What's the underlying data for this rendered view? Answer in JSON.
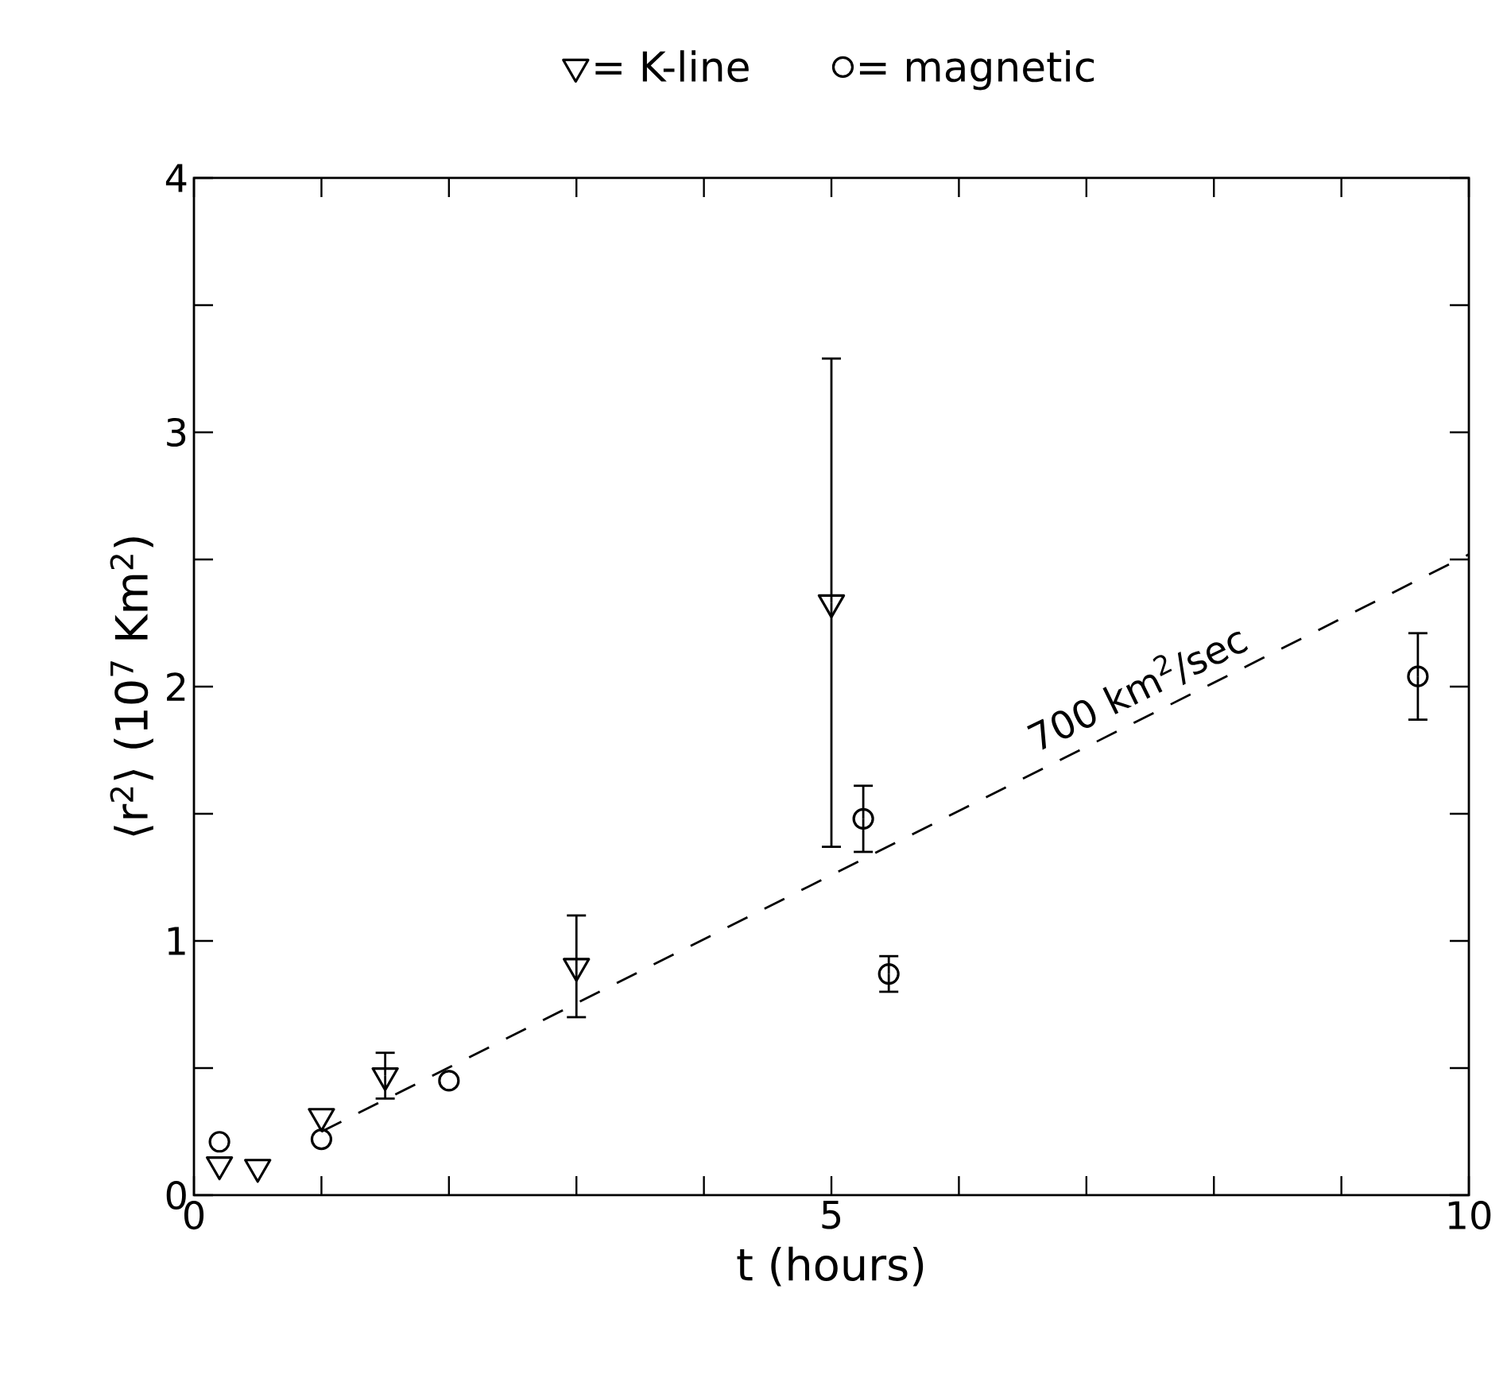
{
  "chart_data": {
    "type": "scatter",
    "xlabel": "t (hours)",
    "ylabel": "⟨r$^{2}$⟩ (10$^{7}$ Km$^{2}$)",
    "xlim": [
      0,
      10
    ],
    "ylim": [
      0,
      4
    ],
    "xticks": [
      0,
      {
        "value": 1,
        "label": null
      },
      {
        "value": 2,
        "label": null
      },
      {
        "value": 3,
        "label": null
      },
      {
        "value": 4,
        "label": null
      },
      5,
      {
        "value": 6,
        "label": null
      },
      {
        "value": 7,
        "label": null
      },
      {
        "value": 8,
        "label": null
      },
      {
        "value": 9,
        "label": null
      },
      10
    ],
    "yticks": [
      0,
      {
        "value": 0.5,
        "label": null
      },
      1,
      {
        "value": 1.5,
        "label": null
      },
      2,
      {
        "value": 2.5,
        "label": null
      },
      3,
      {
        "value": 3.5,
        "label": null
      },
      4
    ],
    "legend": "top",
    "annotations": [
      {
        "text": "700 km$^{2}$/sec",
        "x": 7.5,
        "y": 1.89
      }
    ],
    "series": [
      {
        "name": "= K-line",
        "marker": "triangle",
        "color": "#000000",
        "x": [
          0.2,
          0.5,
          1.0,
          1.5,
          3.0,
          5.0
        ],
        "values": [
          0.12,
          0.11,
          0.31,
          0.47,
          0.9,
          2.33
        ],
        "errors": [
          null,
          null,
          null,
          0.09,
          0.2,
          0.96
        ]
      },
      {
        "name": "= magnetic",
        "marker": "circle",
        "color": "#000000",
        "x": [
          0.2,
          1.0,
          2.0,
          5.25,
          5.45,
          9.6
        ],
        "values": [
          0.21,
          0.22,
          0.45,
          1.48,
          0.87,
          2.04
        ],
        "errors": [
          null,
          null,
          null,
          0.13,
          0.07,
          0.17
        ]
      },
      {
        "type": "line",
        "marker": "none",
        "line_style": "dashed",
        "color": "#000000",
        "x": [
          1,
          10
        ],
        "values": [
          0.25,
          2.52
        ]
      }
    ]
  }
}
